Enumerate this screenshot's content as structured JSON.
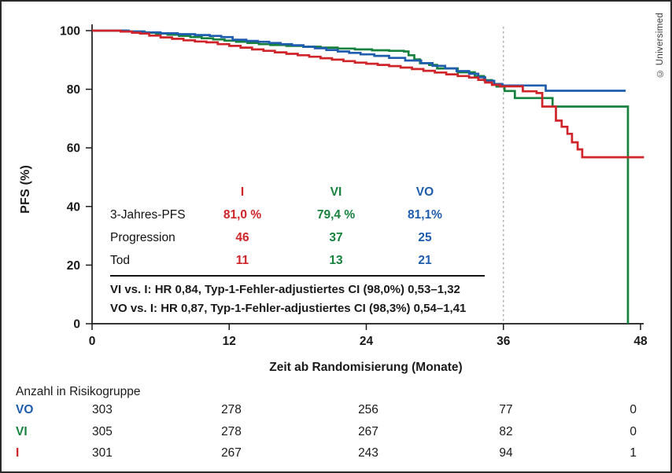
{
  "copyright": "© Universimed",
  "colors": {
    "arm_i_red": "#cf2429",
    "arm_vi_green": "#17823e",
    "arm_vo_blue": "#1e5cad",
    "axis": "#1a1a1a",
    "reference_line": "#9a9a9a"
  },
  "chart": {
    "ylabel": "PFS (%)",
    "xlabel": "Zeit ab Randomisierung (Monate)"
  },
  "chart_data": {
    "type": "line",
    "subtype": "kaplan-meier-step",
    "xlabel": "Zeit ab Randomisierung (Monate)",
    "ylabel": "PFS (%)",
    "xlim": [
      0,
      48
    ],
    "ylim": [
      0,
      100
    ],
    "x_ticks": [
      0,
      12,
      24,
      36,
      48
    ],
    "y_ticks": [
      0,
      20,
      40,
      60,
      80,
      100
    ],
    "grid": false,
    "legend_position": "none",
    "reference_line_x": 36,
    "series": [
      {
        "name": "VI",
        "color": "#17823e",
        "step": true,
        "points": [
          [
            0,
            100
          ],
          [
            3,
            99.7
          ],
          [
            4.6,
            99.3
          ],
          [
            5.6,
            99
          ],
          [
            6.6,
            98.6
          ],
          [
            7.6,
            98.2
          ],
          [
            8.6,
            97.8
          ],
          [
            9.6,
            97.4
          ],
          [
            10.6,
            97
          ],
          [
            11.6,
            96.6
          ],
          [
            12.6,
            96.2
          ],
          [
            13.6,
            95.8
          ],
          [
            14.6,
            95.4
          ],
          [
            15.6,
            95.1
          ],
          [
            17,
            94.8
          ],
          [
            18.5,
            94.5
          ],
          [
            20,
            94.2
          ],
          [
            21.5,
            93.9
          ],
          [
            23,
            93.6
          ],
          [
            24.5,
            93.3
          ],
          [
            26,
            93.1
          ],
          [
            27.3,
            92.9
          ],
          [
            27.7,
            91.6
          ],
          [
            28.2,
            90.2
          ],
          [
            28.7,
            88.9
          ],
          [
            29.5,
            88.3
          ],
          [
            30.2,
            87.1
          ],
          [
            32,
            85.8
          ],
          [
            33.5,
            84.5
          ],
          [
            34.3,
            83.1
          ],
          [
            35,
            81.8
          ],
          [
            35.4,
            80.9
          ],
          [
            36.1,
            79.4
          ],
          [
            37,
            77
          ],
          [
            40.3,
            74.1
          ],
          [
            46.9,
            74.1
          ],
          [
            46.9,
            0
          ]
        ]
      },
      {
        "name": "VO",
        "color": "#1e5cad",
        "step": true,
        "points": [
          [
            0,
            100
          ],
          [
            3.2,
            99.7
          ],
          [
            4.5,
            99.4
          ],
          [
            6,
            99.1
          ],
          [
            7.5,
            98.8
          ],
          [
            9,
            98.5
          ],
          [
            10.3,
            98.2
          ],
          [
            11.3,
            97.8
          ],
          [
            12.3,
            96.9
          ],
          [
            13.5,
            96.5
          ],
          [
            14.5,
            96.2
          ],
          [
            15.5,
            95.8
          ],
          [
            16.5,
            95.4
          ],
          [
            17.5,
            95
          ],
          [
            18.5,
            94.5
          ],
          [
            19.5,
            94
          ],
          [
            20.5,
            93.4
          ],
          [
            21.5,
            92.9
          ],
          [
            22.5,
            92.4
          ],
          [
            23.5,
            91.9
          ],
          [
            24.7,
            91.4
          ],
          [
            26,
            90.7
          ],
          [
            27.4,
            89.8
          ],
          [
            28.8,
            88.9
          ],
          [
            29.8,
            88
          ],
          [
            30.9,
            87.1
          ],
          [
            31.9,
            86.2
          ],
          [
            33,
            85.3
          ],
          [
            33.8,
            84.1
          ],
          [
            34.4,
            82.9
          ],
          [
            35.2,
            81.8
          ],
          [
            35.9,
            81.3
          ],
          [
            39.7,
            79.5
          ],
          [
            46.7,
            79.5
          ]
        ]
      },
      {
        "name": "I",
        "color": "#cf2429",
        "step": true,
        "points": [
          [
            0,
            100
          ],
          [
            2.5,
            99.7
          ],
          [
            3.5,
            99.3
          ],
          [
            4.2,
            99
          ],
          [
            5,
            98.3
          ],
          [
            6,
            97.7
          ],
          [
            7,
            97.2
          ],
          [
            8,
            96.7
          ],
          [
            9,
            96.3
          ],
          [
            10,
            96
          ],
          [
            11,
            95.4
          ],
          [
            12,
            94.8
          ],
          [
            13,
            94.2
          ],
          [
            14,
            93.6
          ],
          [
            15,
            93.1
          ],
          [
            16,
            92.6
          ],
          [
            17,
            92.1
          ],
          [
            18,
            91.6
          ],
          [
            19,
            91.1
          ],
          [
            20,
            90.6
          ],
          [
            21,
            90.1
          ],
          [
            22,
            89.6
          ],
          [
            23,
            89.1
          ],
          [
            24,
            88.7
          ],
          [
            25,
            88.3
          ],
          [
            26,
            87.9
          ],
          [
            27,
            87.4
          ],
          [
            28,
            86.9
          ],
          [
            29,
            86.3
          ],
          [
            30,
            85.7
          ],
          [
            31,
            85.1
          ],
          [
            32,
            84.5
          ],
          [
            33,
            84
          ],
          [
            33.8,
            83.2
          ],
          [
            34.4,
            82.3
          ],
          [
            35,
            81.5
          ],
          [
            35.7,
            81
          ],
          [
            37.7,
            79.3
          ],
          [
            38.9,
            78.7
          ],
          [
            39.4,
            74.1
          ],
          [
            40.6,
            69.3
          ],
          [
            41.1,
            67.2
          ],
          [
            41.6,
            64.8
          ],
          [
            42,
            61.9
          ],
          [
            42.5,
            59.5
          ],
          [
            42.9,
            56.8
          ],
          [
            48.3,
            56.8
          ]
        ]
      }
    ],
    "annotations": {
      "three_year_pfs": {
        "I": "81,0 %",
        "VI": "79,4 %",
        "VO": "81,1%"
      }
    }
  },
  "stats_table": {
    "col_headers": {
      "i": "I",
      "vi": "VI",
      "vo": "VO"
    },
    "rows": [
      {
        "label": "3-Jahres-PFS",
        "i": "81,0 %",
        "vi": "79,4 %",
        "vo": "81,1%"
      },
      {
        "label": "Progression",
        "i": "46",
        "vi": "37",
        "vo": "25"
      },
      {
        "label": "Tod",
        "i": "11",
        "vi": "13",
        "vo": "21"
      }
    ],
    "footnotes": [
      "VI vs. I: HR 0,84, Typ-1-Fehler-adjustiertes CI (98,0%) 0,53–1,32",
      "VO vs. I: HR 0,87, Typ-1-Fehler-adjustiertes CI (98,3%) 0,54–1,41"
    ]
  },
  "risk_table": {
    "title": "Anzahl in Risikogruppe",
    "time_points": [
      0,
      12,
      24,
      36,
      48
    ],
    "rows": [
      {
        "label": "VO",
        "values": [
          "303",
          "278",
          "256",
          "77",
          "0"
        ]
      },
      {
        "label": "VI",
        "values": [
          "305",
          "278",
          "267",
          "82",
          "0"
        ]
      },
      {
        "label": "I",
        "values": [
          "301",
          "267",
          "243",
          "94",
          "1"
        ]
      }
    ]
  }
}
